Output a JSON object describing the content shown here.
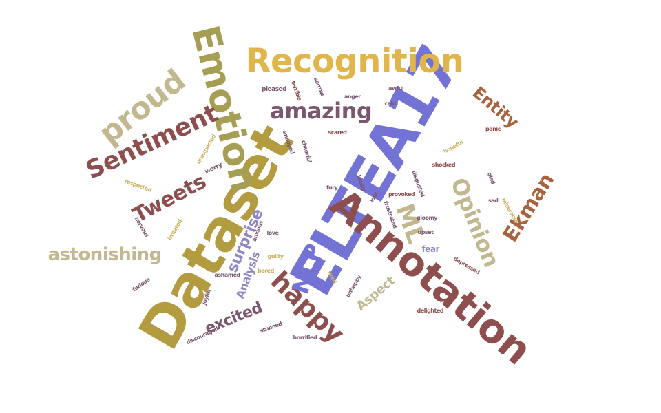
{
  "palette": {
    "gold": "#b39c3f",
    "mustard": "#e0b64c",
    "tan": "#c2b88f",
    "brown": "#8e4e4e",
    "rust": "#a8633e",
    "plum": "#7a566f",
    "indigo": "#7373d6",
    "lavender": "#8f87c4",
    "olive": "#a69e55",
    "khaki": "#c9b05a"
  },
  "words": [
    {
      "id": "elitea17",
      "text": "ELTEA17",
      "color": "indigo"
    },
    {
      "id": "dataset",
      "text": "Dataset",
      "color": "gold"
    },
    {
      "id": "annotation",
      "text": "Annotation",
      "color": "brown"
    },
    {
      "id": "emotion",
      "text": "Emotion",
      "color": "olive"
    },
    {
      "id": "recognition",
      "text": "Recognition",
      "color": "mustard"
    },
    {
      "id": "proud",
      "text": "proud",
      "color": "tan"
    },
    {
      "id": "sentiment",
      "text": "Sentiment",
      "color": "brown"
    },
    {
      "id": "amazing",
      "text": "amazing",
      "color": "plum"
    },
    {
      "id": "tweets",
      "text": "Tweets",
      "color": "brown"
    },
    {
      "id": "happy",
      "text": "happy",
      "color": "brown"
    },
    {
      "id": "opinion",
      "text": "Opinion",
      "color": "tan"
    },
    {
      "id": "ekman",
      "text": "Ekman",
      "color": "rust"
    },
    {
      "id": "entity",
      "text": "Entity",
      "color": "rust"
    },
    {
      "id": "ml",
      "text": "ML",
      "color": "tan"
    },
    {
      "id": "nlp",
      "text": "NLP",
      "color": "indigo"
    },
    {
      "id": "astonishing",
      "text": "astonishing",
      "color": "tan"
    },
    {
      "id": "surprise",
      "text": "surprise",
      "color": "lavender"
    },
    {
      "id": "analysis",
      "text": "Analysis",
      "color": "lavender"
    },
    {
      "id": "excited",
      "text": "excited",
      "color": "plum"
    },
    {
      "id": "aspect",
      "text": "Aspect",
      "color": "tan"
    },
    {
      "id": "fear",
      "text": "fear",
      "color": "lavender"
    },
    {
      "id": "pleased",
      "text": "pleased",
      "color": "plum"
    },
    {
      "id": "terrible",
      "text": "terrible",
      "color": "brown"
    },
    {
      "id": "sorrow",
      "text": "sorrow",
      "color": "plum"
    },
    {
      "id": "anger",
      "text": "anger",
      "color": "plum"
    },
    {
      "id": "shocked",
      "text": "shocked",
      "color": "brown"
    },
    {
      "id": "scared",
      "text": "scared",
      "color": "brown"
    },
    {
      "id": "panic",
      "text": "panic",
      "color": "brown"
    },
    {
      "id": "annoyed",
      "text": "annoyed",
      "color": "plum"
    },
    {
      "id": "cheerful",
      "text": "cheerful",
      "color": "plum"
    },
    {
      "id": "unexpected",
      "text": "unexpected",
      "color": "khaki"
    },
    {
      "id": "worry",
      "text": "worry",
      "color": "plum"
    },
    {
      "id": "respected",
      "text": "respected",
      "color": "khaki"
    },
    {
      "id": "glad",
      "text": "glad",
      "color": "plum"
    },
    {
      "id": "lonely",
      "text": "lonely",
      "color": "plum"
    },
    {
      "id": "fury",
      "text": "fury",
      "color": "plum"
    },
    {
      "id": "disgusted",
      "text": "disgusted",
      "color": "plum"
    },
    {
      "id": "provoked",
      "text": "provoked",
      "color": "brown"
    },
    {
      "id": "frustrated",
      "text": "frustrated",
      "color": "plum"
    },
    {
      "id": "gloomy",
      "text": "gloomy",
      "color": "plum"
    },
    {
      "id": "nervous",
      "text": "nervous",
      "color": "plum"
    },
    {
      "id": "irritated",
      "text": "irritated",
      "color": "khaki"
    },
    {
      "id": "depressed",
      "text": "depressed",
      "color": "brown"
    },
    {
      "id": "delighted",
      "text": "delighted",
      "color": "brown"
    },
    {
      "id": "furious",
      "text": "furious",
      "color": "plum"
    },
    {
      "id": "ashamed",
      "text": "ashamed",
      "color": "plum"
    },
    {
      "id": "discouraged",
      "text": "discouraged",
      "color": "plum"
    },
    {
      "id": "stunned",
      "text": "stunned",
      "color": "plum"
    },
    {
      "id": "horrified",
      "text": "horrified",
      "color": "plum"
    },
    {
      "id": "unhappy",
      "text": "unhappy",
      "color": "plum"
    },
    {
      "id": "joyful",
      "text": "joyful",
      "color": "plum"
    },
    {
      "id": "miserable",
      "text": "miserable",
      "color": "khaki"
    },
    {
      "id": "bored",
      "text": "bored",
      "color": "khaki"
    },
    {
      "id": "hopeful",
      "text": "hopeful",
      "color": "khaki"
    },
    {
      "id": "awful",
      "text": "awful",
      "color": "plum"
    },
    {
      "id": "sad",
      "text": "sad",
      "color": "plum"
    },
    {
      "id": "tired",
      "text": "tired",
      "color": "khaki"
    },
    {
      "id": "upset",
      "text": "upset",
      "color": "plum"
    },
    {
      "id": "guilty",
      "text": "guilty",
      "color": "khaki"
    },
    {
      "id": "calm",
      "text": "calm",
      "color": "plum"
    },
    {
      "id": "anxious",
      "text": "anxious",
      "color": "plum"
    },
    {
      "id": "love",
      "text": "love",
      "color": "plum"
    },
    {
      "id": "lost",
      "text": "lost",
      "color": "plum"
    }
  ]
}
